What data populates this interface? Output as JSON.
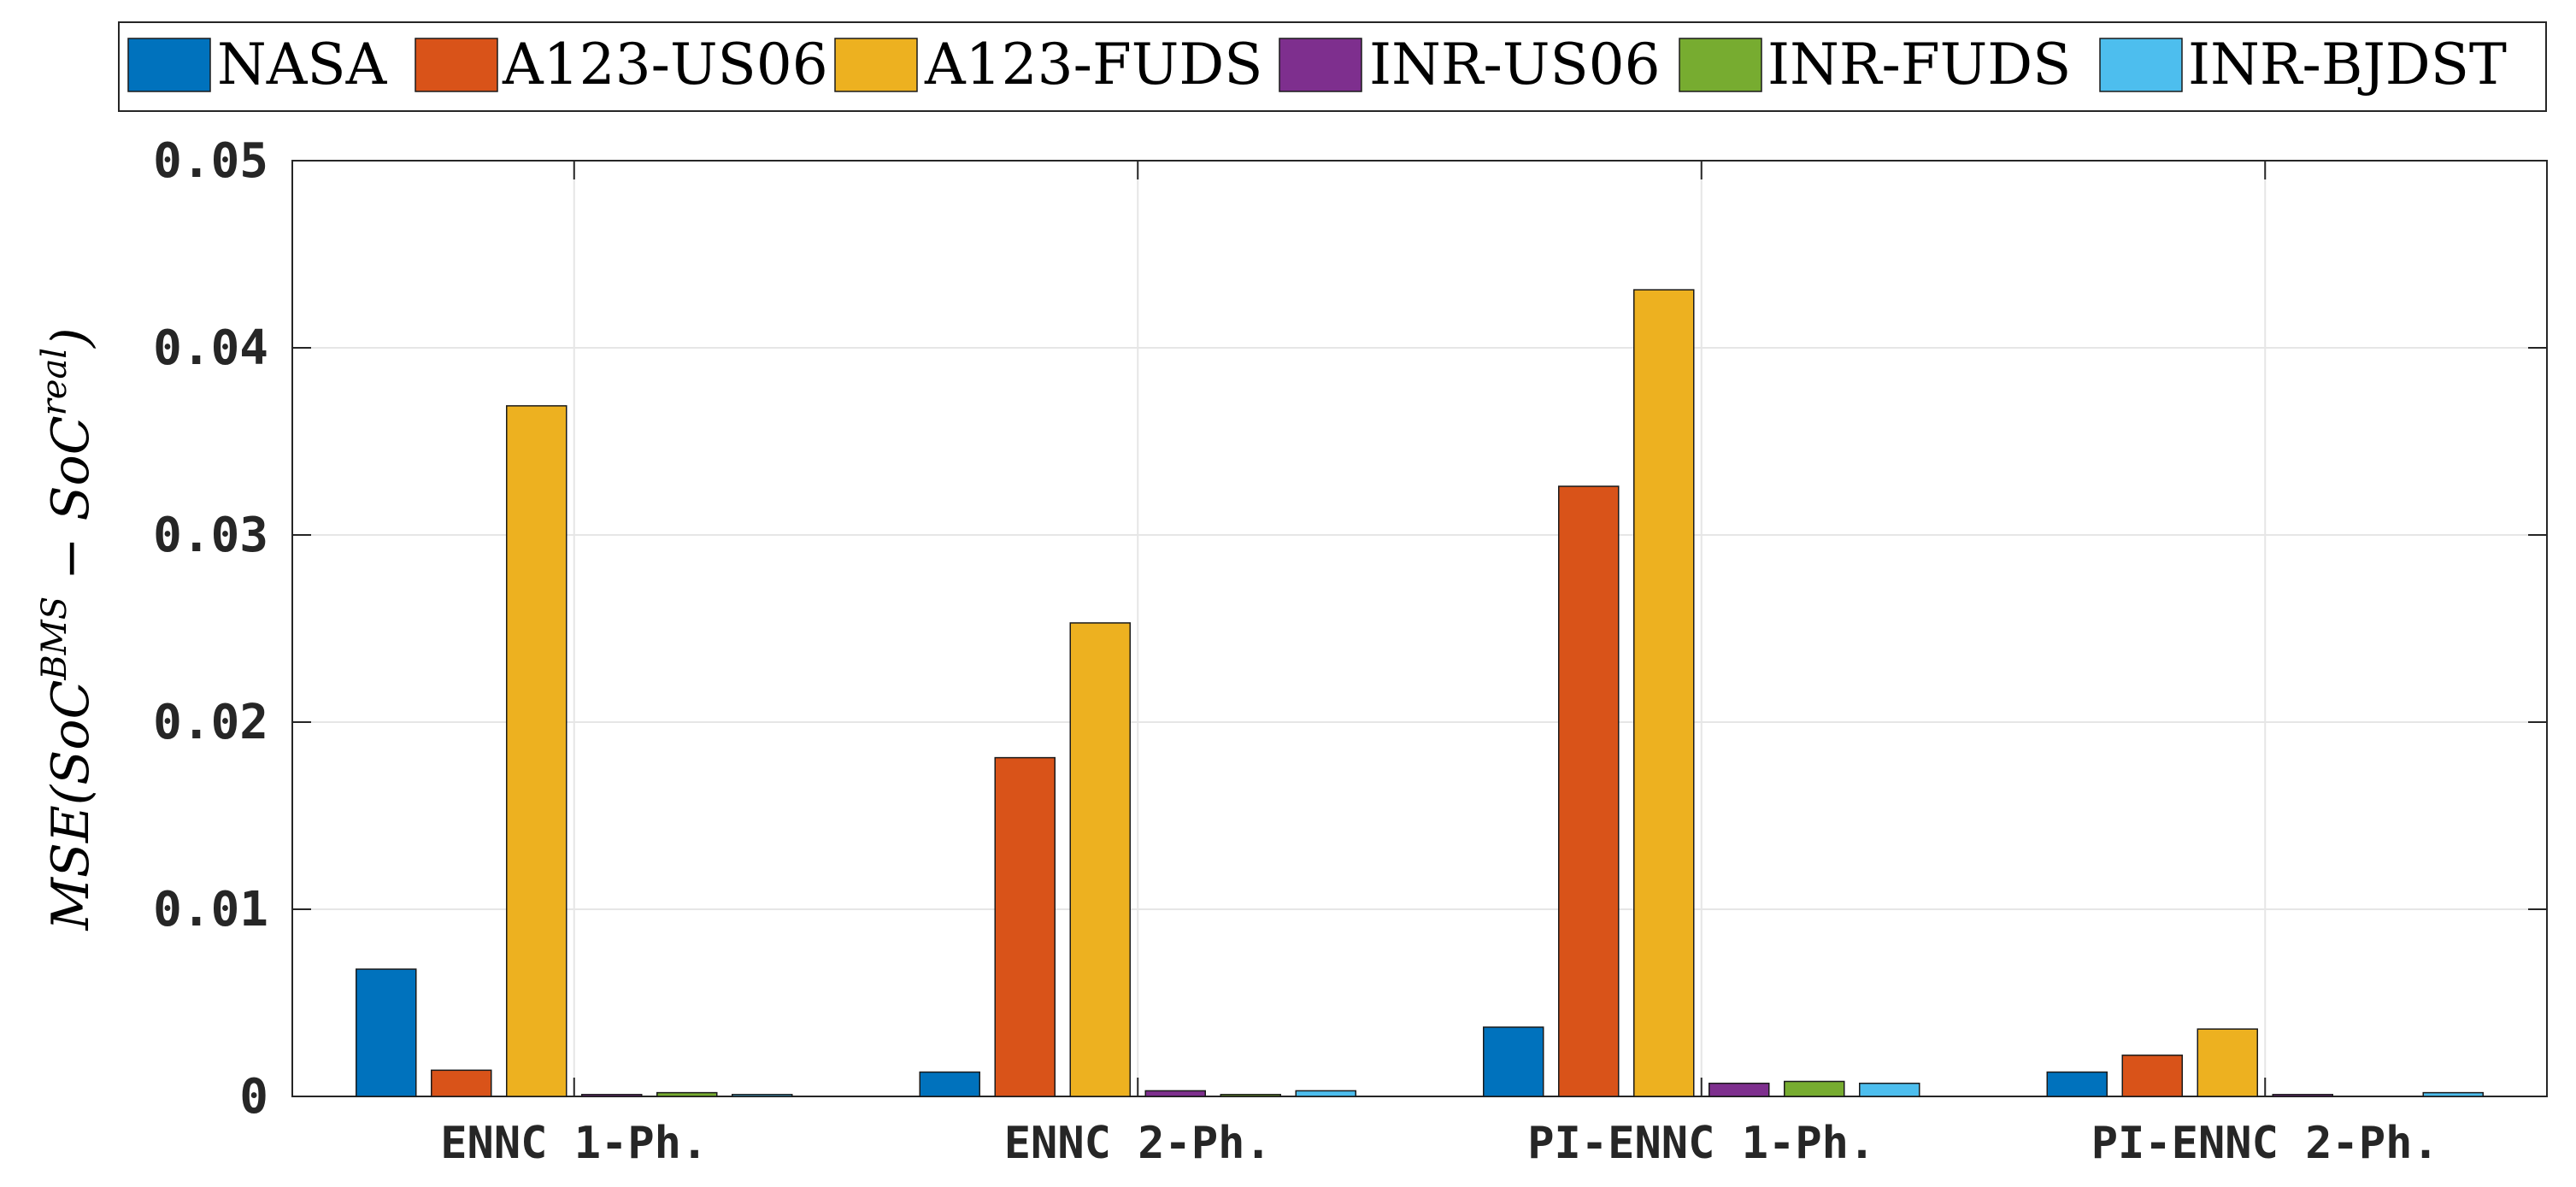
{
  "chart_data": {
    "type": "bar",
    "categories": [
      "ENNC 1-Ph.",
      "ENNC 2-Ph.",
      "PI-ENNC 1-Ph.",
      "PI-ENNC 2-Ph."
    ],
    "series": [
      {
        "name": "NASA",
        "color": "#0072BD",
        "values": [
          0.0068,
          0.0013,
          0.0037,
          0.0013
        ]
      },
      {
        "name": "A123-US06",
        "color": "#D95319",
        "values": [
          0.0014,
          0.0181,
          0.0326,
          0.0022
        ]
      },
      {
        "name": "A123-FUDS",
        "color": "#EDB120",
        "values": [
          0.0369,
          0.0253,
          0.0431,
          0.0036
        ]
      },
      {
        "name": "INR-US06",
        "color": "#7E2F8E",
        "values": [
          0.0001,
          0.0003,
          0.0007,
          0.0001
        ]
      },
      {
        "name": "INR-FUDS",
        "color": "#77AC30",
        "values": [
          0.0002,
          0.0001,
          0.0008,
          0.0
        ]
      },
      {
        "name": "INR-BJDST",
        "color": "#4DBEEE",
        "values": [
          0.0001,
          0.0003,
          0.0007,
          0.0002
        ]
      }
    ],
    "ylim": [
      0,
      0.05
    ],
    "yticks": [
      "0",
      "0.01",
      "0.02",
      "0.03",
      "0.04",
      "0.05"
    ],
    "ylabel": {
      "prefix": "MSE(SoC",
      "sup1": "BMS",
      "middle": " − SoC",
      "sup2": "real",
      "suffix": ")"
    },
    "grid": true,
    "legend_position": "top-outside"
  }
}
